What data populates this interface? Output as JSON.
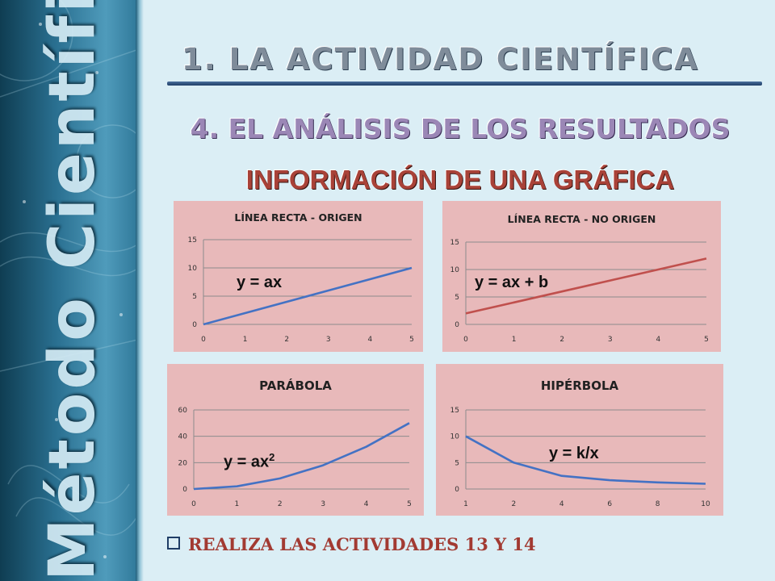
{
  "slide": {
    "sidebar_title": "Método Científico",
    "heading1": "1. LA ACTIVIDAD CIENTÍFICA",
    "heading2": "4. EL ANÁLISIS DE LOS RESULTADOS",
    "heading3": "INFORMACIÓN DE UNA GRÁFICA",
    "footer": "REALIZA LAS ACTIVIDADES 13 Y 14"
  },
  "chart_data": [
    {
      "id": "c1",
      "type": "line",
      "title": "LÍNEA RECTA - ORIGEN",
      "equation": "y = ax",
      "equation_sup": "",
      "x": [
        0,
        1,
        2,
        3,
        4,
        5
      ],
      "xticks": [
        "0",
        "1",
        "2",
        "3",
        "4",
        "5"
      ],
      "x_categorical": false,
      "series": [
        {
          "values": [
            0,
            2,
            4,
            6,
            8,
            10
          ],
          "color": "#4472c4"
        }
      ],
      "yticks": [
        0,
        5,
        10,
        15
      ],
      "ylim": [
        0,
        15
      ],
      "grid": true
    },
    {
      "id": "c2",
      "type": "line",
      "title": "LÍNEA RECTA - NO ORIGEN",
      "equation": "y = ax + b",
      "equation_sup": "",
      "x": [
        0,
        1,
        2,
        3,
        4,
        5
      ],
      "xticks": [
        "0",
        "1",
        "2",
        "3",
        "4",
        "5"
      ],
      "x_categorical": false,
      "series": [
        {
          "values": [
            2,
            4,
            6,
            8,
            10,
            12
          ],
          "color": "#c0504d"
        }
      ],
      "yticks": [
        0,
        5,
        10,
        15
      ],
      "ylim": [
        0,
        15
      ],
      "grid": true
    },
    {
      "id": "c3",
      "type": "line",
      "title": "PARÁBOLA",
      "equation": "y = ax",
      "equation_sup": "2",
      "x": [
        0,
        1,
        2,
        3,
        4,
        5
      ],
      "xticks": [
        "0",
        "1",
        "2",
        "3",
        "4",
        "5"
      ],
      "x_categorical": false,
      "series": [
        {
          "values": [
            0,
            2,
            8,
            18,
            32,
            50
          ],
          "color": "#4472c4"
        }
      ],
      "yticks": [
        0,
        20,
        40,
        60
      ],
      "ylim": [
        0,
        60
      ],
      "grid": true
    },
    {
      "id": "c4",
      "type": "line",
      "title": "HIPÉRBOLA",
      "equation": "y = k/x",
      "equation_sup": "",
      "x": [
        1,
        2,
        4,
        6,
        8,
        10
      ],
      "xticks": [
        "1",
        "2",
        "4",
        "6",
        "8",
        "10"
      ],
      "x_categorical": true,
      "series": [
        {
          "values": [
            10,
            5,
            2.5,
            1.67,
            1.25,
            1
          ],
          "color": "#4472c4"
        }
      ],
      "yticks": [
        0,
        5,
        10,
        15
      ],
      "ylim": [
        0,
        15
      ],
      "grid": true
    }
  ]
}
